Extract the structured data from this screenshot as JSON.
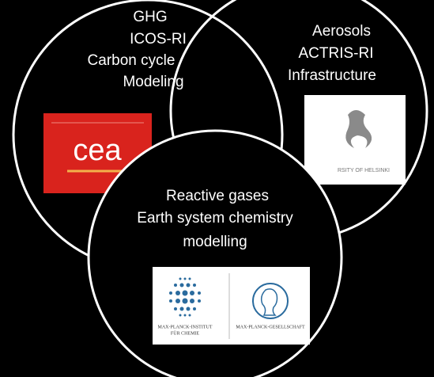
{
  "circles": [
    {
      "lines": [
        "GHG",
        "ICOS-RI",
        "Carbon cycle",
        "Modeling"
      ],
      "logo": "cea"
    },
    {
      "lines": [
        "Aerosols",
        "ACTRIS-RI",
        "Infrastructure"
      ],
      "logo": "RSITY OF HELSINKI"
    },
    {
      "lines": [
        "Reactive gases",
        "Earth system chemistry",
        "modelling"
      ],
      "logo": [
        "MAX-PLANCK-INSTITUT",
        "FÜR CHEMIE",
        "MAX-PLANCK-GESELLSCHAFT"
      ]
    }
  ]
}
